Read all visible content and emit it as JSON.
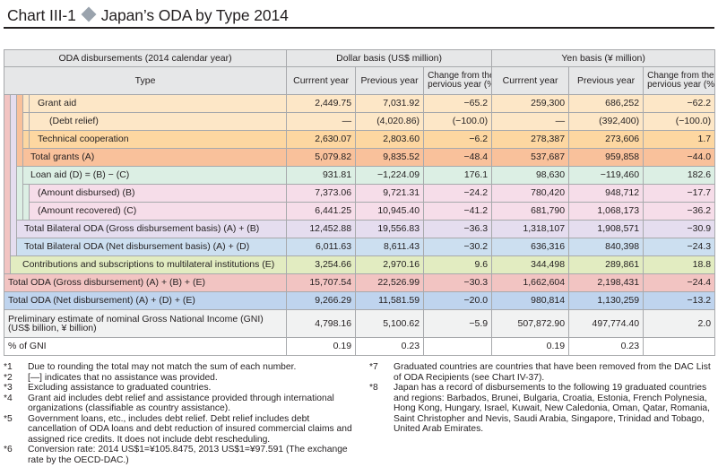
{
  "title": {
    "chart_label": "Chart III-1",
    "text": "Japan’s ODA by Type 2014"
  },
  "table": {
    "header": {
      "group_label": "ODA disbursements (2014 calendar year)",
      "dollar_group": "Dollar basis (US$ million)",
      "yen_group": "Yen basis (¥ million)",
      "type": "Type",
      "current_year": "Currrent year",
      "previous_year": "Previous year",
      "change_line1": "Change from the",
      "change_line2": "pervious year (%)"
    },
    "rows": [
      {
        "label": "Grant aid",
        "usd_cur": "2,449.75",
        "usd_prev": "7,031.92",
        "usd_chg": "−65.2",
        "yen_cur": "259,300",
        "yen_prev": "686,252",
        "yen_chg": "−62.2"
      },
      {
        "label": "(Debt relief)",
        "usd_cur": "—",
        "usd_prev": "(4,020.86)",
        "usd_chg": "(−100.0)",
        "yen_cur": "—",
        "yen_prev": "(392,400)",
        "yen_chg": "(−100.0)"
      },
      {
        "label": "Technical cooperation",
        "usd_cur": "2,630.07",
        "usd_prev": "2,803.60",
        "usd_chg": "−6.2",
        "yen_cur": "278,387",
        "yen_prev": "273,606",
        "yen_chg": "1.7"
      },
      {
        "label": "Total grants (A)",
        "usd_cur": "5,079.82",
        "usd_prev": "9,835.52",
        "usd_chg": "−48.4",
        "yen_cur": "537,687",
        "yen_prev": "959,858",
        "yen_chg": "−44.0"
      },
      {
        "label": "Loan aid (D) = (B) − (C)",
        "usd_cur": "931.81",
        "usd_prev": "−1,224.09",
        "usd_chg": "176.1",
        "yen_cur": "98,630",
        "yen_prev": "−119,460",
        "yen_chg": "182.6"
      },
      {
        "label": "(Amount disbursed) (B)",
        "usd_cur": "7,373.06",
        "usd_prev": "9,721.31",
        "usd_chg": "−24.2",
        "yen_cur": "780,420",
        "yen_prev": "948,712",
        "yen_chg": "−17.7"
      },
      {
        "label": "(Amount recovered) (C)",
        "usd_cur": "6,441.25",
        "usd_prev": "10,945.40",
        "usd_chg": "−41.2",
        "yen_cur": "681,790",
        "yen_prev": "1,068,173",
        "yen_chg": "−36.2"
      },
      {
        "label": "Total Bilateral ODA (Gross disbursement basis) (A) + (B)",
        "usd_cur": "12,452.88",
        "usd_prev": "19,556.83",
        "usd_chg": "−36.3",
        "yen_cur": "1,318,107",
        "yen_prev": "1,908,571",
        "yen_chg": "−30.9"
      },
      {
        "label": "Total Bilateral ODA (Net disbursement basis) (A) + (D)",
        "usd_cur": "6,011.63",
        "usd_prev": "8,611.43",
        "usd_chg": "−30.2",
        "yen_cur": "636,316",
        "yen_prev": "840,398",
        "yen_chg": "−24.3"
      },
      {
        "label": "Contributions and subscriptions to multilateral institutions (E)",
        "usd_cur": "3,254.66",
        "usd_prev": "2,970.16",
        "usd_chg": "9.6",
        "yen_cur": "344,498",
        "yen_prev": "289,861",
        "yen_chg": "18.8"
      },
      {
        "label": "Total ODA (Gross disbursement) (A) + (B) + (E)",
        "usd_cur": "15,707.54",
        "usd_prev": "22,526.99",
        "usd_chg": "−30.3",
        "yen_cur": "1,662,604",
        "yen_prev": "2,198,431",
        "yen_chg": "−24.4"
      },
      {
        "label": "Total ODA (Net disbursement) (A) + (D) + (E)",
        "usd_cur": "9,266.29",
        "usd_prev": "11,581.59",
        "usd_chg": "−20.0",
        "yen_cur": "980,814",
        "yen_prev": "1,130,259",
        "yen_chg": "−13.2"
      },
      {
        "label_line1": "Preliminary estimate of nominal Gross National Income (GNI)",
        "label_line2": "(US$ billion, ¥ billion)",
        "usd_cur": "4,798.16",
        "usd_prev": "5,100.62",
        "usd_chg": "−5.9",
        "yen_cur": "507,872.90",
        "yen_prev": "497,774.40",
        "yen_chg": "2.0"
      },
      {
        "label": "% of GNI",
        "usd_cur": "0.19",
        "usd_prev": "0.23",
        "usd_chg": "",
        "yen_cur": "0.19",
        "yen_prev": "0.23",
        "yen_chg": ""
      }
    ],
    "colors": {
      "grant_aid": "#fde7c7",
      "technical_cooperation": "#fdd7a1",
      "total_grants": "#f9c19b",
      "loan_aid": "#dcefe4",
      "loan_sub": "#f6dde9",
      "bilateral_gross": "#e5ddef",
      "bilateral_net": "#ccdff0",
      "multilateral": "#e2ecc1",
      "total_oda_gross": "#f2c4c2",
      "total_oda_net": "#bfd4ee",
      "gni": "#f1f2f2"
    }
  },
  "notes_left": [
    {
      "mark": "*1",
      "text": "Due to rounding the total may not match the sum of each number."
    },
    {
      "mark": "*2",
      "text": "[—] indicates that no assistance was provided."
    },
    {
      "mark": "*3",
      "text": "Excluding assistance to graduated countries."
    },
    {
      "mark": "*4",
      "text": "Grant aid includes debt relief and assistance provided through international organizations (classifiable as country assistance)."
    },
    {
      "mark": "*5",
      "text": "Government loans, etc., includes debt relief. Debt relief includes debt cancellation of ODA loans and debt reduction of insured commercial claims and assigned rice credits. It does not include debt rescheduling."
    },
    {
      "mark": "*6",
      "text": "Conversion rate: 2014 US$1=¥105.8475, 2013 US$1=¥97.591 (The exchange rate by the OECD-DAC.)"
    }
  ],
  "notes_right": [
    {
      "mark": "*7",
      "text": "Graduated countries are countries that have been removed from the DAC List of ODA Recipients (see Chart IV-37)."
    },
    {
      "mark": "*8",
      "text": "Japan has a record of disbursements to the following 19 graduated countries and regions: Barbados, Brunei, Bulgaria, Croatia, Estonia, French Polynesia, Hong Kong, Hungary, Israel, Kuwait, New Caledonia, Oman, Qatar, Romania, Saint Christopher and Nevis, Saudi Arabia, Singapore, Trinidad and Tobago, United Arab Emirates."
    }
  ]
}
